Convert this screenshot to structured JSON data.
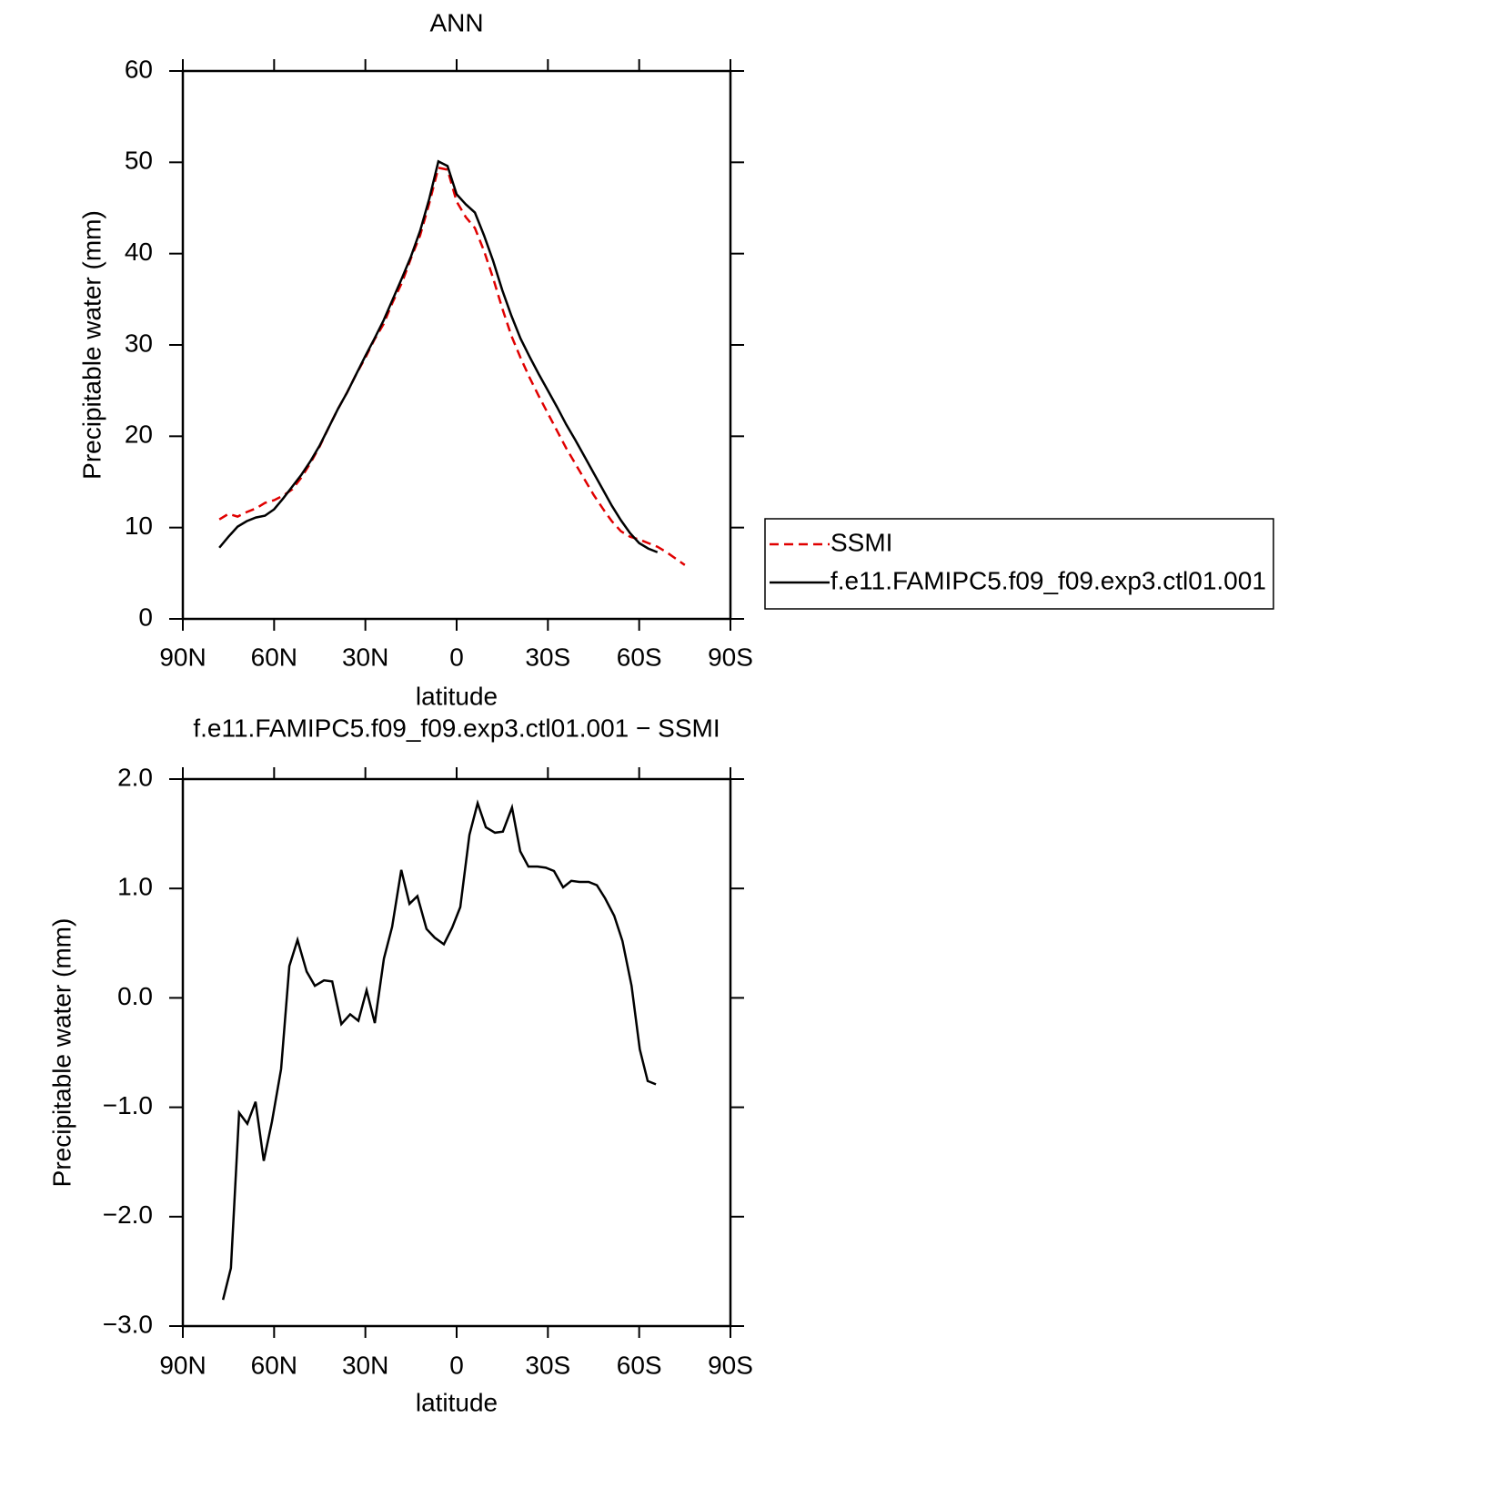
{
  "chart_data": [
    {
      "type": "line",
      "title": "ANN",
      "x_label": "latitude",
      "y_label": "Precipitable water (mm)",
      "x": [
        78,
        75,
        72,
        69,
        66,
        63,
        60,
        57,
        54,
        51,
        48,
        45,
        42,
        39,
        36,
        33,
        30,
        27,
        24,
        21,
        18,
        15,
        12,
        9,
        6,
        3,
        0,
        -3,
        -6,
        -9,
        -12,
        -15,
        -18,
        -21,
        -24,
        -27,
        -30,
        -33,
        -36,
        -39,
        -42,
        -45,
        -48,
        -51,
        -54,
        -57,
        -60,
        -63,
        -66,
        -69,
        -72,
        -75
      ],
      "series": [
        {
          "name": "SSMI",
          "color": "#e00000",
          "style": "dashed",
          "values": [
            10.9,
            11.5,
            11.2,
            11.7,
            12.1,
            12.7,
            13.0,
            13.5,
            14.2,
            15.5,
            17.1,
            18.9,
            21.0,
            23.0,
            24.8,
            26.8,
            28.6,
            30.6,
            32.3,
            34.7,
            36.8,
            39.5,
            42.0,
            45.5,
            49.4,
            49.2,
            45.7,
            44.0,
            42.8,
            40.3,
            37.3,
            34.0,
            31.0,
            28.6,
            26.4,
            24.4,
            22.5,
            20.6,
            18.7,
            17.0,
            15.3,
            13.6,
            12.1,
            10.7,
            9.6,
            9.0,
            8.7,
            8.3,
            7.9,
            7.3,
            6.6,
            5.9
          ]
        },
        {
          "name": "f.e11.FAMIPC5.f09_f09.exp3.ctl01.001",
          "color": "#000000",
          "style": "solid",
          "values": [
            7.8,
            9.0,
            10.1,
            10.7,
            11.1,
            11.3,
            12.0,
            13.2,
            14.5,
            15.8,
            17.3,
            19.0,
            21.0,
            23.0,
            24.8,
            26.8,
            28.8,
            30.7,
            32.7,
            35.0,
            37.3,
            39.7,
            42.5,
            46.0,
            50.1,
            49.6,
            46.5,
            45.4,
            44.5,
            42.0,
            39.2,
            36.0,
            33.2,
            30.7,
            28.7,
            26.8,
            25.0,
            23.2,
            21.3,
            19.6,
            17.8,
            16.0,
            14.2,
            12.4,
            10.8,
            9.4,
            8.3,
            7.7,
            7.3,
            null,
            null,
            null
          ]
        }
      ],
      "xlim": [
        90,
        -90
      ],
      "xticks": [
        {
          "value": 90,
          "label": "90N"
        },
        {
          "value": 60,
          "label": "60N"
        },
        {
          "value": 30,
          "label": "30N"
        },
        0,
        {
          "value": -30,
          "label": "30S"
        },
        {
          "value": -60,
          "label": "60S"
        },
        {
          "value": -90,
          "label": "90S"
        }
      ],
      "ylim": [
        0,
        60
      ],
      "yticks": [
        0,
        10,
        20,
        30,
        40,
        50,
        60
      ],
      "legend": "right"
    },
    {
      "type": "line",
      "title": "f.e11.FAMIPC5.f09_f09.exp3.ctl01.001  −  SSMI",
      "x_label": "latitude",
      "y_label": "Precipitable water (mm)",
      "x": [
        76.8,
        74.2,
        71.5,
        68.8,
        66.1,
        63.4,
        60.7,
        57.7,
        55.0,
        52.3,
        49.3,
        46.6,
        43.6,
        40.9,
        37.9,
        35.0,
        32.3,
        29.6,
        26.9,
        23.9,
        21.2,
        18.2,
        15.5,
        12.9,
        9.9,
        7.2,
        4.2,
        1.5,
        -1.2,
        -4.2,
        -6.9,
        -9.6,
        -12.6,
        -15.2,
        -18.2,
        -20.9,
        -23.6,
        -26.6,
        -29.3,
        -32.0,
        -35.0,
        -37.7,
        -40.4,
        -43.4,
        -46.1,
        -48.8,
        -51.8,
        -54.5,
        -57.5,
        -60.2,
        -62.8,
        -65.5
      ],
      "series": [
        {
          "color": "#000000",
          "style": "solid",
          "values": [
            -2.76,
            -2.47,
            -1.05,
            -1.15,
            -0.95,
            -1.49,
            -1.13,
            -0.65,
            0.29,
            0.53,
            0.24,
            0.11,
            0.16,
            0.15,
            -0.24,
            -0.15,
            -0.21,
            0.07,
            -0.23,
            0.36,
            0.65,
            1.17,
            0.86,
            0.93,
            0.63,
            0.55,
            0.49,
            0.64,
            0.83,
            1.49,
            1.78,
            1.56,
            1.51,
            1.52,
            1.74,
            1.34,
            1.2,
            1.2,
            1.19,
            1.16,
            1.01,
            1.07,
            1.06,
            1.06,
            1.03,
            0.91,
            0.75,
            0.52,
            0.11,
            -0.47,
            -0.76,
            -0.79
          ]
        }
      ],
      "xlim": [
        90,
        -90
      ],
      "xticks": [
        {
          "value": 90,
          "label": "90N"
        },
        {
          "value": 60,
          "label": "60N"
        },
        {
          "value": 30,
          "label": "30N"
        },
        0,
        {
          "value": -30,
          "label": "30S"
        },
        {
          "value": -60,
          "label": "60S"
        },
        {
          "value": -90,
          "label": "90S"
        }
      ],
      "ylim": [
        -3,
        2
      ],
      "yticks": [
        {
          "value": -3,
          "label": "−3.0"
        },
        {
          "value": -2,
          "label": "−2.0"
        },
        {
          "value": -1,
          "label": "−1.0"
        },
        {
          "value": 0,
          "label": "0.0"
        },
        {
          "value": 1,
          "label": "1.0"
        },
        {
          "value": 2,
          "label": "2.0"
        }
      ]
    }
  ]
}
